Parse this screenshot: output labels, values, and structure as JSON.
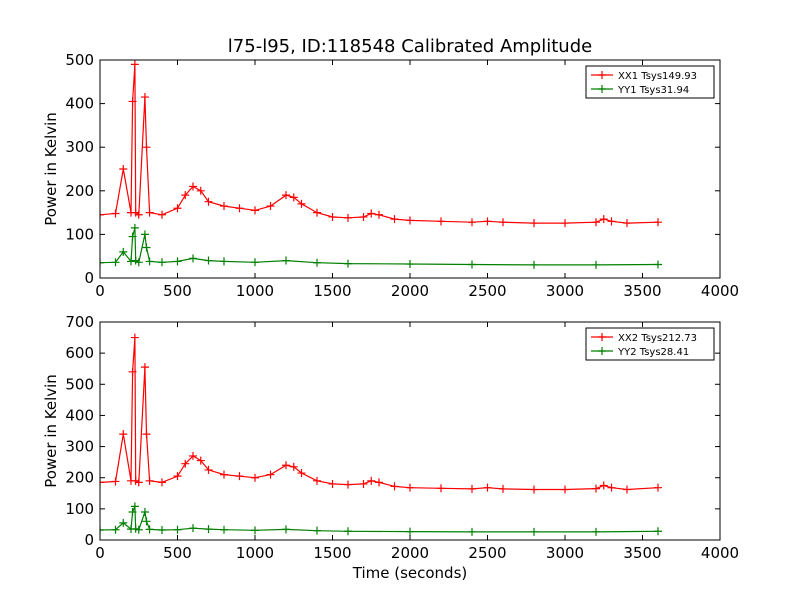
{
  "chart_data": [
    {
      "type": "line",
      "title": "l75-l95, ID:118548 Calibrated Amplitude",
      "xlabel": "",
      "ylabel": "Power in Kelvin",
      "xlim": [
        0,
        4000
      ],
      "ylim": [
        0,
        500
      ],
      "xticks": [
        "0",
        "500",
        "1000",
        "1500",
        "2000",
        "2500",
        "3000",
        "3500",
        "4000"
      ],
      "yticks": [
        "0",
        "100",
        "200",
        "300",
        "400",
        "500"
      ],
      "grid": false,
      "legend_position": "top-right",
      "marker": "plus",
      "series": [
        {
          "name": "XX1 Tsys149.93",
          "color": "#ff0000",
          "x": [
            0,
            100,
            150,
            200,
            210,
            225,
            230,
            250,
            290,
            300,
            320,
            400,
            500,
            550,
            600,
            650,
            700,
            800,
            900,
            1000,
            1100,
            1200,
            1250,
            1300,
            1400,
            1500,
            1600,
            1700,
            1750,
            1800,
            1900,
            2000,
            2200,
            2400,
            2500,
            2600,
            2800,
            3000,
            3200,
            3250,
            3300,
            3400,
            3600
          ],
          "y": [
            145,
            148,
            250,
            150,
            405,
            490,
            150,
            145,
            415,
            300,
            150,
            145,
            160,
            190,
            210,
            200,
            175,
            165,
            160,
            155,
            165,
            190,
            185,
            170,
            150,
            140,
            138,
            140,
            148,
            145,
            135,
            132,
            130,
            128,
            130,
            128,
            126,
            126,
            128,
            135,
            130,
            126,
            128
          ]
        },
        {
          "name": "YY1 Tsys31.94",
          "color": "#008000",
          "x": [
            0,
            100,
            150,
            200,
            210,
            225,
            230,
            250,
            290,
            300,
            320,
            400,
            500,
            600,
            700,
            800,
            1000,
            1200,
            1400,
            1600,
            2000,
            2400,
            2800,
            3200,
            3600
          ],
          "y": [
            35,
            36,
            60,
            38,
            95,
            115,
            40,
            36,
            100,
            70,
            38,
            36,
            38,
            45,
            40,
            38,
            36,
            40,
            35,
            33,
            32,
            31,
            30,
            30,
            31
          ]
        }
      ]
    },
    {
      "type": "line",
      "title": "",
      "xlabel": "Time (seconds)",
      "ylabel": "Power in Kelvin",
      "xlim": [
        0,
        4000
      ],
      "ylim": [
        0,
        700
      ],
      "xticks": [
        "0",
        "500",
        "1000",
        "1500",
        "2000",
        "2500",
        "3000",
        "3500",
        "4000"
      ],
      "yticks": [
        "0",
        "100",
        "200",
        "300",
        "400",
        "500",
        "600",
        "700"
      ],
      "grid": false,
      "legend_position": "top-right",
      "marker": "plus",
      "series": [
        {
          "name": "XX2 Tsys212.73",
          "color": "#ff0000",
          "x": [
            0,
            100,
            150,
            200,
            210,
            225,
            230,
            250,
            290,
            300,
            320,
            400,
            500,
            550,
            600,
            650,
            700,
            800,
            900,
            1000,
            1100,
            1200,
            1250,
            1300,
            1400,
            1500,
            1600,
            1700,
            1750,
            1800,
            1900,
            2000,
            2200,
            2400,
            2500,
            2600,
            2800,
            3000,
            3200,
            3250,
            3300,
            3400,
            3600
          ],
          "y": [
            185,
            188,
            340,
            190,
            540,
            650,
            190,
            185,
            555,
            340,
            190,
            185,
            205,
            245,
            270,
            255,
            225,
            210,
            205,
            200,
            210,
            240,
            235,
            215,
            190,
            180,
            178,
            180,
            190,
            185,
            172,
            168,
            166,
            164,
            168,
            164,
            162,
            162,
            165,
            175,
            168,
            162,
            168
          ]
        },
        {
          "name": "YY2 Tsys28.41",
          "color": "#008000",
          "x": [
            0,
            100,
            150,
            200,
            210,
            225,
            230,
            250,
            290,
            300,
            320,
            400,
            500,
            600,
            700,
            800,
            1000,
            1200,
            1400,
            1600,
            2000,
            2400,
            2800,
            3200,
            3600
          ],
          "y": [
            32,
            33,
            55,
            35,
            90,
            108,
            36,
            33,
            90,
            60,
            34,
            32,
            33,
            38,
            35,
            33,
            31,
            34,
            30,
            28,
            27,
            26,
            26,
            26,
            28
          ]
        }
      ]
    }
  ]
}
